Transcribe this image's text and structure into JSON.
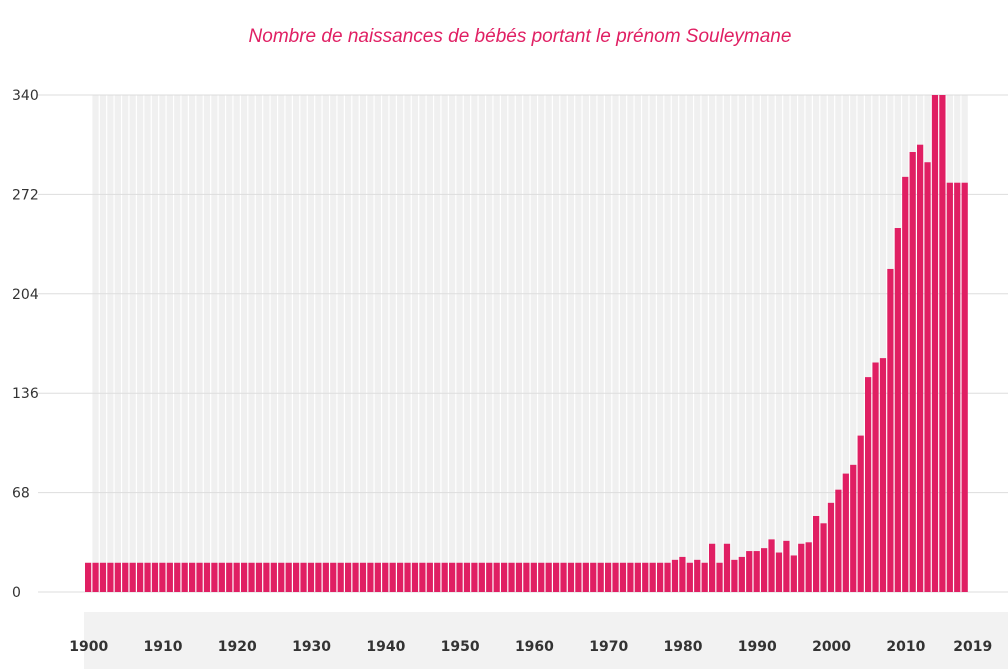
{
  "chart_data": {
    "type": "bar",
    "title": "Nombre de naissances de bébés portant le prénom Souleymane",
    "xlabel": "",
    "ylabel": "",
    "y_ticks": [
      "0",
      "68",
      "136",
      "204",
      "272",
      "340"
    ],
    "ylim": [
      0,
      340
    ],
    "x_ticks": [
      "1900",
      "1910",
      "1920",
      "1930",
      "1940",
      "1950",
      "1960",
      "1970",
      "1980",
      "1990",
      "2000",
      "2010",
      "2019"
    ],
    "grid": true,
    "series_color": "#e01f63",
    "grid_bar_color": "#f0f0f0",
    "axis_band_color": "#f2f2f2",
    "title_color": "#e01f63",
    "first_year": 1900,
    "values": [
      20,
      20,
      20,
      20,
      20,
      20,
      20,
      20,
      20,
      20,
      20,
      20,
      20,
      20,
      20,
      20,
      20,
      20,
      20,
      20,
      20,
      20,
      20,
      20,
      20,
      20,
      20,
      20,
      20,
      20,
      20,
      20,
      20,
      20,
      20,
      20,
      20,
      20,
      20,
      20,
      20,
      20,
      20,
      20,
      20,
      20,
      20,
      20,
      20,
      20,
      20,
      20,
      20,
      20,
      20,
      20,
      20,
      20,
      20,
      20,
      20,
      20,
      20,
      20,
      20,
      20,
      20,
      20,
      20,
      20,
      20,
      20,
      20,
      20,
      20,
      20,
      20,
      20,
      20,
      22,
      24,
      20,
      22,
      20,
      33,
      20,
      33,
      22,
      24,
      28,
      28,
      30,
      36,
      27,
      35,
      25,
      33,
      34,
      52,
      47,
      61,
      70,
      81,
      87,
      107,
      147,
      157,
      160,
      221,
      249,
      284,
      301,
      306,
      294,
      340,
      340,
      280,
      280,
      280
    ]
  }
}
